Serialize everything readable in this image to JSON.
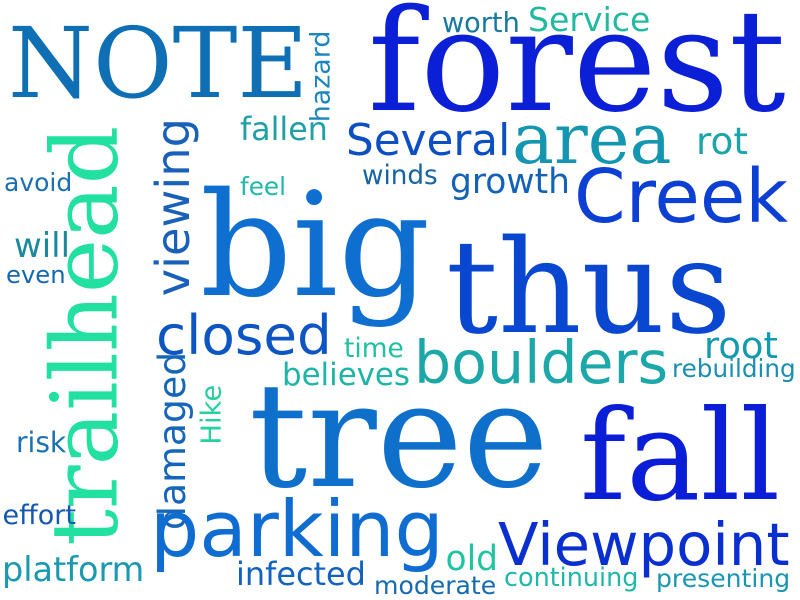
{
  "words": [
    {
      "text": "NOTE",
      "color": "#0f6fb4"
    },
    {
      "text": "forest",
      "color": "#0a1fd6"
    },
    {
      "text": "hazard",
      "color": "#1a86bd"
    },
    {
      "text": "worth",
      "color": "#16799f"
    },
    {
      "text": "Service",
      "color": "#22b9a0"
    },
    {
      "text": "trailhead",
      "color": "#22e0a0"
    },
    {
      "text": "viewing",
      "color": "#1860b8"
    },
    {
      "text": "fallen",
      "color": "#1fa0a6"
    },
    {
      "text": "Several",
      "color": "#0c4fc2"
    },
    {
      "text": "area",
      "color": "#1596b0"
    },
    {
      "text": "rot",
      "color": "#1ba5ab"
    },
    {
      "text": "avoid",
      "color": "#1a6fb0"
    },
    {
      "text": "feel",
      "color": "#20b8a7"
    },
    {
      "text": "winds",
      "color": "#1664a0"
    },
    {
      "text": "growth",
      "color": "#1462b8"
    },
    {
      "text": "Creek",
      "color": "#0c3fd3"
    },
    {
      "text": "big",
      "color": "#0f6fd0"
    },
    {
      "text": "will",
      "color": "#1c8a9c"
    },
    {
      "text": "even",
      "color": "#1468b0"
    },
    {
      "text": "thus",
      "color": "#0a47d0"
    },
    {
      "text": "closed",
      "color": "#0c55c2"
    },
    {
      "text": "time",
      "color": "#20c0a2"
    },
    {
      "text": "boulders",
      "color": "#1ca8a8"
    },
    {
      "text": "root",
      "color": "#149ab0"
    },
    {
      "text": "damaged",
      "color": "#1566b8"
    },
    {
      "text": "believes",
      "color": "#20b4a7"
    },
    {
      "text": "rebuilding",
      "color": "#1b8fb0"
    },
    {
      "text": "Hike",
      "color": "#27d0a0"
    },
    {
      "text": "tree",
      "color": "#0f70cc"
    },
    {
      "text": "risk",
      "color": "#1a72b0"
    },
    {
      "text": "fall",
      "color": "#0a1ed8"
    },
    {
      "text": "effort",
      "color": "#1458b0"
    },
    {
      "text": "parking",
      "color": "#0f6cd0"
    },
    {
      "text": "Viewpoint",
      "color": "#0a2fd0"
    },
    {
      "text": "old",
      "color": "#20c4a2"
    },
    {
      "text": "platform",
      "color": "#1a9ab0"
    },
    {
      "text": "infected",
      "color": "#1462c0"
    },
    {
      "text": "moderate",
      "color": "#166ab0"
    },
    {
      "text": "continuing",
      "color": "#20b8a8"
    },
    {
      "text": "presenting",
      "color": "#1a96b0"
    }
  ]
}
